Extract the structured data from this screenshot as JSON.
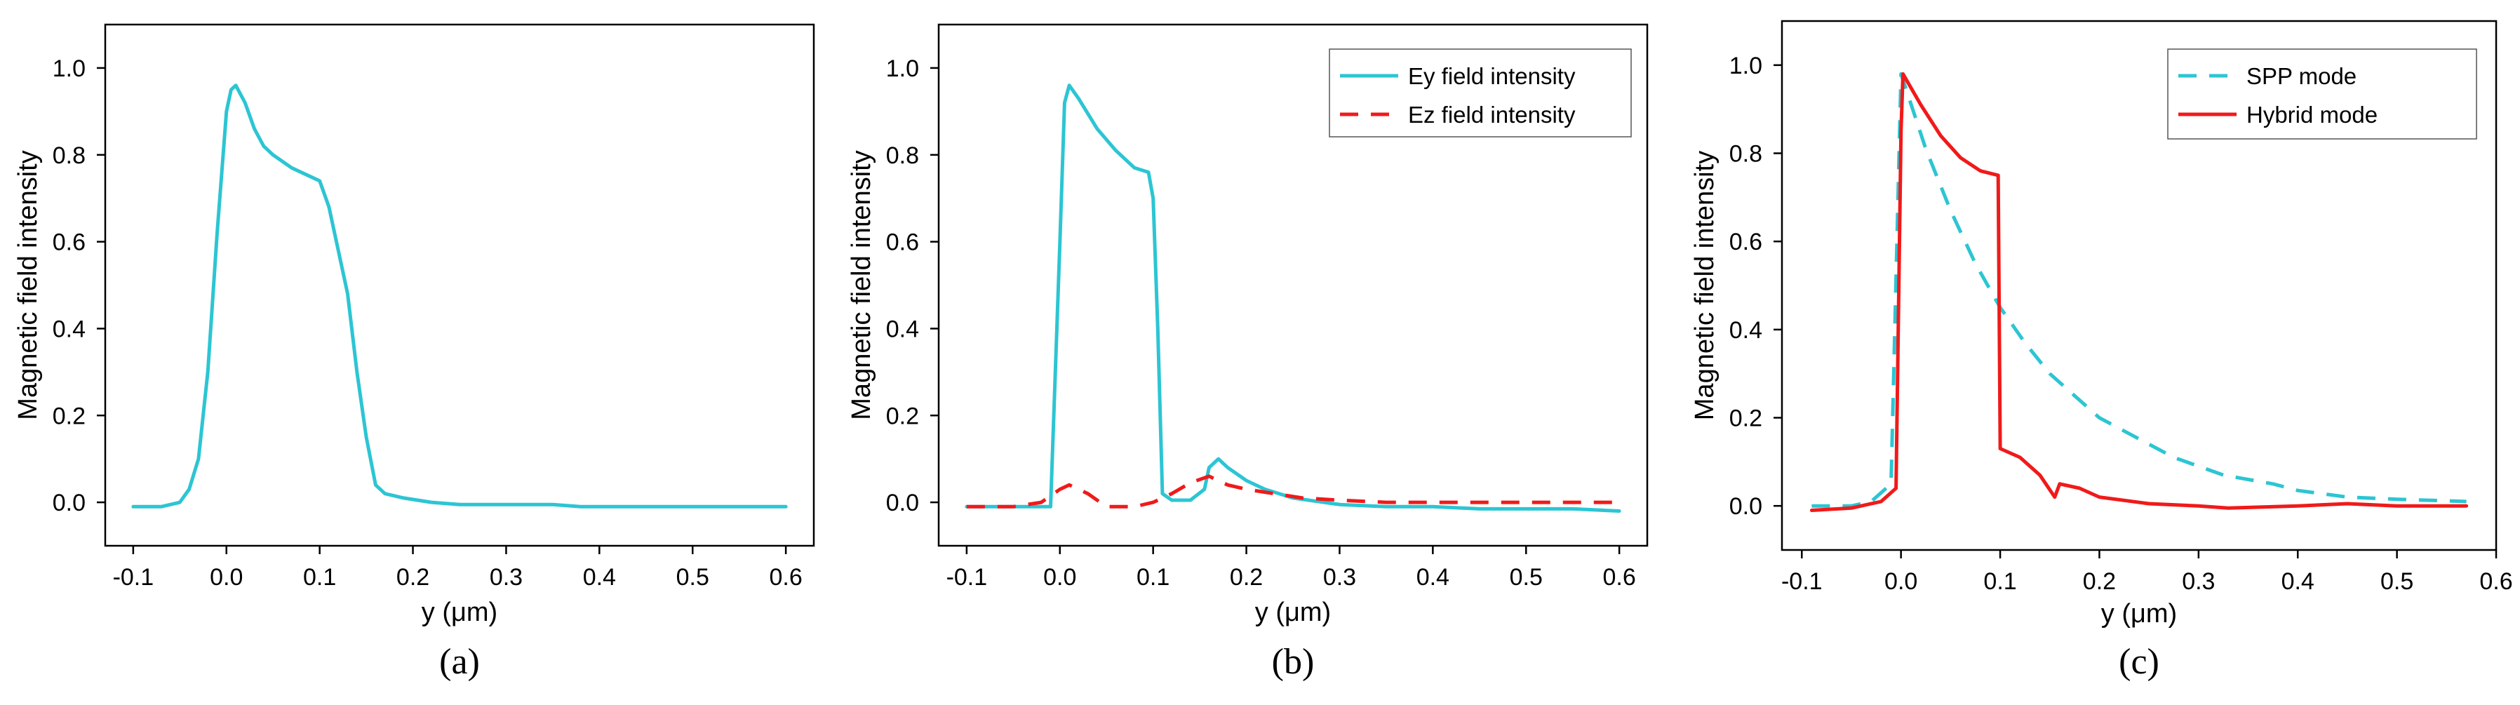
{
  "colors": {
    "cyan": "#2cc5d3",
    "red": "#f01a1a",
    "axis": "#000000"
  },
  "chart_data": [
    {
      "type": "line",
      "panel": "(a)",
      "xlabel": "y (μm)",
      "ylabel": "Magnetic field intensity",
      "xlim": [
        -0.13,
        0.63
      ],
      "ylim": [
        -0.1,
        1.1
      ],
      "xticks": [
        "-0.1",
        "0.0",
        "0.1",
        "0.2",
        "0.3",
        "0.4",
        "0.5",
        "0.6"
      ],
      "yticks": [
        "0.0",
        "0.2",
        "0.4",
        "0.6",
        "0.8",
        "1.0"
      ],
      "legend": null,
      "series": [
        {
          "name": "Magnetic field intensity",
          "color": "#2cc5d3",
          "dash": "solid",
          "x": [
            -0.1,
            -0.07,
            -0.05,
            -0.04,
            -0.03,
            -0.02,
            -0.01,
            0.0,
            0.005,
            0.01,
            0.02,
            0.03,
            0.04,
            0.05,
            0.07,
            0.09,
            0.1,
            0.11,
            0.12,
            0.13,
            0.14,
            0.15,
            0.16,
            0.17,
            0.19,
            0.22,
            0.25,
            0.3,
            0.35,
            0.38,
            0.4,
            0.45,
            0.5,
            0.55,
            0.6
          ],
          "y": [
            -0.01,
            -0.01,
            0.0,
            0.03,
            0.1,
            0.3,
            0.62,
            0.9,
            0.95,
            0.96,
            0.92,
            0.86,
            0.82,
            0.8,
            0.77,
            0.75,
            0.74,
            0.68,
            0.58,
            0.48,
            0.3,
            0.15,
            0.04,
            0.02,
            0.01,
            0.0,
            -0.005,
            -0.005,
            -0.005,
            -0.01,
            -0.01,
            -0.01,
            -0.01,
            -0.01,
            -0.01
          ]
        }
      ]
    },
    {
      "type": "line",
      "panel": "(b)",
      "xlabel": "y (μm)",
      "ylabel": "Magnetic field intensity",
      "xlim": [
        -0.13,
        0.63
      ],
      "ylim": [
        -0.1,
        1.1
      ],
      "xticks": [
        "-0.1",
        "0.0",
        "0.1",
        "0.2",
        "0.3",
        "0.4",
        "0.5",
        "0.6"
      ],
      "yticks": [
        "0.0",
        "0.2",
        "0.4",
        "0.6",
        "0.8",
        "1.0"
      ],
      "legend": {
        "placement": "top-right",
        "entries": [
          "Ey field intensity",
          "Ez field intensity"
        ]
      },
      "series": [
        {
          "name": "Ey field intensity",
          "color": "#2cc5d3",
          "dash": "solid",
          "x": [
            -0.1,
            -0.05,
            -0.01,
            0.0,
            0.005,
            0.01,
            0.02,
            0.04,
            0.06,
            0.08,
            0.095,
            0.1,
            0.105,
            0.11,
            0.12,
            0.14,
            0.155,
            0.16,
            0.17,
            0.18,
            0.2,
            0.22,
            0.25,
            0.3,
            0.35,
            0.4,
            0.45,
            0.5,
            0.55,
            0.6
          ],
          "y": [
            -0.01,
            -0.01,
            -0.01,
            0.6,
            0.92,
            0.96,
            0.93,
            0.86,
            0.81,
            0.77,
            0.76,
            0.7,
            0.4,
            0.02,
            0.005,
            0.005,
            0.03,
            0.08,
            0.1,
            0.08,
            0.05,
            0.03,
            0.01,
            -0.005,
            -0.01,
            -0.01,
            -0.015,
            -0.015,
            -0.015,
            -0.02
          ]
        },
        {
          "name": "Ez field intensity",
          "color": "#f01a1a",
          "dash": "dashed",
          "x": [
            -0.1,
            -0.05,
            -0.02,
            0.0,
            0.01,
            0.03,
            0.05,
            0.08,
            0.1,
            0.12,
            0.14,
            0.16,
            0.18,
            0.2,
            0.23,
            0.26,
            0.3,
            0.35,
            0.4,
            0.45,
            0.5,
            0.55,
            0.6
          ],
          "y": [
            -0.01,
            -0.01,
            0.0,
            0.03,
            0.04,
            0.02,
            -0.01,
            -0.01,
            0.0,
            0.02,
            0.045,
            0.06,
            0.04,
            0.03,
            0.02,
            0.01,
            0.005,
            0.0,
            0.0,
            0.0,
            0.0,
            0.0,
            0.0
          ]
        }
      ]
    },
    {
      "type": "line",
      "panel": "(c)",
      "xlabel": "y (μm)",
      "ylabel": "Magnetic field intensity",
      "xlim": [
        -0.12,
        0.6
      ],
      "ylim": [
        -0.1,
        1.1
      ],
      "xticks": [
        "-0.1",
        "0.0",
        "0.1",
        "0.2",
        "0.3",
        "0.4",
        "0.5",
        "0.6"
      ],
      "yticks": [
        "0.0",
        "0.2",
        "0.4",
        "0.6",
        "0.8",
        "1.0"
      ],
      "legend": {
        "placement": "top-right",
        "entries": [
          "SPP mode",
          "Hybrid mode"
        ]
      },
      "series": [
        {
          "name": "SPP mode",
          "color": "#2cc5d3",
          "dash": "dashed",
          "x": [
            -0.09,
            -0.05,
            -0.03,
            -0.01,
            0.0,
            0.025,
            0.05,
            0.075,
            0.1,
            0.125,
            0.15,
            0.175,
            0.2,
            0.225,
            0.25,
            0.275,
            0.3,
            0.325,
            0.35,
            0.375,
            0.4,
            0.45,
            0.5,
            0.57
          ],
          "y": [
            0.0,
            0.0,
            0.01,
            0.05,
            0.98,
            0.81,
            0.67,
            0.55,
            0.45,
            0.37,
            0.3,
            0.25,
            0.2,
            0.17,
            0.14,
            0.11,
            0.09,
            0.07,
            0.06,
            0.05,
            0.035,
            0.02,
            0.015,
            0.01
          ]
        },
        {
          "name": "Hybrid mode",
          "color": "#f01a1a",
          "dash": "solid",
          "x": [
            -0.09,
            -0.05,
            -0.02,
            -0.005,
            0.0,
            0.002,
            0.02,
            0.04,
            0.06,
            0.08,
            0.098,
            0.1,
            0.12,
            0.14,
            0.155,
            0.16,
            0.18,
            0.2,
            0.25,
            0.3,
            0.33,
            0.4,
            0.45,
            0.5,
            0.55,
            0.57
          ],
          "y": [
            -0.01,
            -0.005,
            0.01,
            0.04,
            0.85,
            0.98,
            0.91,
            0.84,
            0.79,
            0.76,
            0.75,
            0.13,
            0.11,
            0.07,
            0.02,
            0.05,
            0.04,
            0.02,
            0.005,
            0.0,
            -0.005,
            0.0,
            0.005,
            0.0,
            0.0,
            0.0
          ]
        }
      ]
    }
  ]
}
